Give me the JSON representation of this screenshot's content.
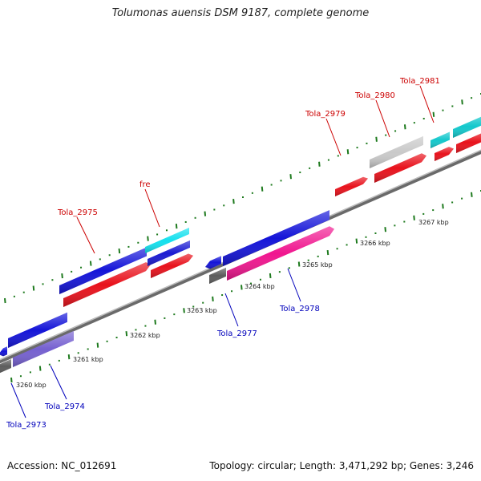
{
  "title": "Tolumonas auensis DSM 9187, complete genome",
  "footer": {
    "accession": "Accession: NC_012691",
    "summary": "Topology: circular; Length: 3,471,292 bp; Genes: 3,246"
  },
  "colors": {
    "backbone": "#888888",
    "tick": "#1e7a1e",
    "label_forward": "#cc0000",
    "label_reverse": "#0000bb"
  },
  "scale_labels": [
    "3260 kbp",
    "3261 kbp",
    "3262 kbp",
    "3263 kbp",
    "3264 kbp",
    "3265 kbp",
    "3266 kbp",
    "3267 kbp"
  ],
  "gene_labels": {
    "forward": [
      "Tola_2975",
      "fre",
      "Tola_2979",
      "Tola_2980",
      "Tola_2981"
    ],
    "reverse": [
      "Tola_2973",
      "Tola_2974",
      "Tola_2977",
      "Tola_2978"
    ]
  }
}
